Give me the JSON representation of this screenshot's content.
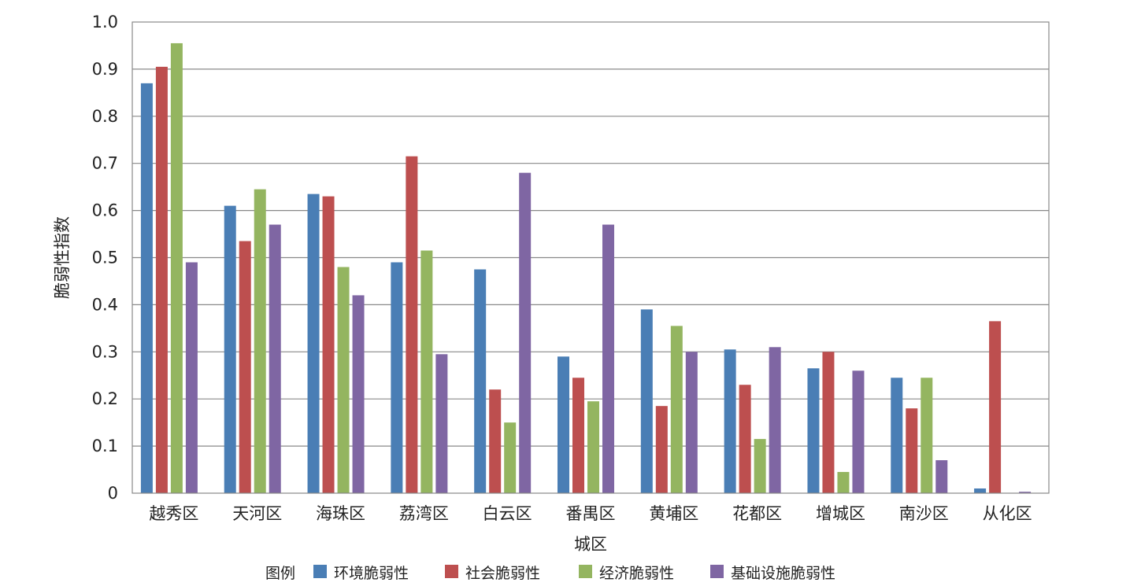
{
  "chart_data": {
    "type": "bar",
    "xlabel": "城区",
    "ylabel": "脆弱性指数",
    "ylim": [
      0,
      1.0
    ],
    "y_ticks": [
      "0",
      "0.1",
      "0.2",
      "0.3",
      "0.4",
      "0.5",
      "0.6",
      "0.7",
      "0.8",
      "0.9",
      "1.0"
    ],
    "grid": true,
    "legend": {
      "title": "图例",
      "position": "bottom"
    },
    "categories": [
      "越秀区",
      "天河区",
      "海珠区",
      "荔湾区",
      "白云区",
      "番禺区",
      "黄埔区",
      "花都区",
      "增城区",
      "南沙区",
      "从化区"
    ],
    "series": [
      {
        "name": "环境脆弱性",
        "color": "#4a7eb5",
        "values": [
          0.87,
          0.61,
          0.635,
          0.49,
          0.475,
          0.29,
          0.39,
          0.305,
          0.265,
          0.245,
          0.01
        ]
      },
      {
        "name": "社会脆弱性",
        "color": "#bd4f4f",
        "values": [
          0.905,
          0.535,
          0.63,
          0.715,
          0.22,
          0.245,
          0.185,
          0.23,
          0.3,
          0.18,
          0.365
        ]
      },
      {
        "name": "经济脆弱性",
        "color": "#94b560",
        "values": [
          0.955,
          0.645,
          0.48,
          0.515,
          0.15,
          0.195,
          0.355,
          0.115,
          0.045,
          0.245,
          0
        ]
      },
      {
        "name": "基础设施脆弱性",
        "color": "#7f66a3",
        "values": [
          0.49,
          0.57,
          0.42,
          0.295,
          0.68,
          0.57,
          0.3,
          0.31,
          0.26,
          0.07,
          0.003
        ]
      }
    ]
  }
}
